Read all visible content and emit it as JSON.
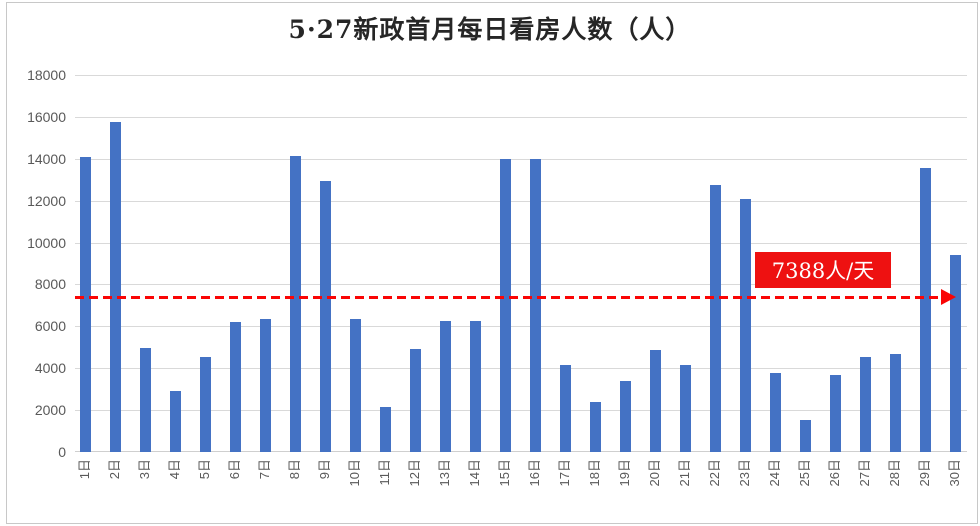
{
  "title": "5·27新政首月每日看房人数（人）",
  "colors": {
    "bar": "#4472c4",
    "grid": "#d9d9d9",
    "axis_line": "#cfcfcf",
    "tick_text": "#595959",
    "title_text": "#262626",
    "ref_line": "#fa0505",
    "annotation_bg": "#ee1111",
    "annotation_text": "#ffffff"
  },
  "annotation": {
    "label": "7388人/天"
  },
  "chart_data": {
    "type": "bar",
    "title": "5·27新政首月每日看房人数（人）",
    "xlabel": "",
    "ylabel": "",
    "ylim": [
      0,
      18000
    ],
    "ytick_interval": 2000,
    "yticks": [
      0,
      2000,
      4000,
      6000,
      8000,
      10000,
      12000,
      14000,
      16000,
      18000
    ],
    "grid": true,
    "legend": "none",
    "categories": [
      "1日",
      "2日",
      "3日",
      "4日",
      "5日",
      "6日",
      "7日",
      "8日",
      "9日",
      "10日",
      "11日",
      "12日",
      "13日",
      "14日",
      "15日",
      "16日",
      "17日",
      "18日",
      "19日",
      "20日",
      "21日",
      "22日",
      "23日",
      "24日",
      "25日",
      "26日",
      "27日",
      "28日",
      "29日",
      "30日"
    ],
    "values": [
      14100,
      15750,
      4950,
      2900,
      4550,
      6200,
      6350,
      14150,
      12950,
      6350,
      2150,
      4900,
      6250,
      6250,
      14000,
      14000,
      4150,
      2400,
      3400,
      4850,
      4150,
      12750,
      12100,
      3750,
      1550,
      3700,
      4550,
      4700,
      13550,
      9400
    ],
    "reference_line": {
      "value": 7388,
      "label": "7388人/天",
      "style": "dashed",
      "direction": "right-arrow"
    }
  }
}
